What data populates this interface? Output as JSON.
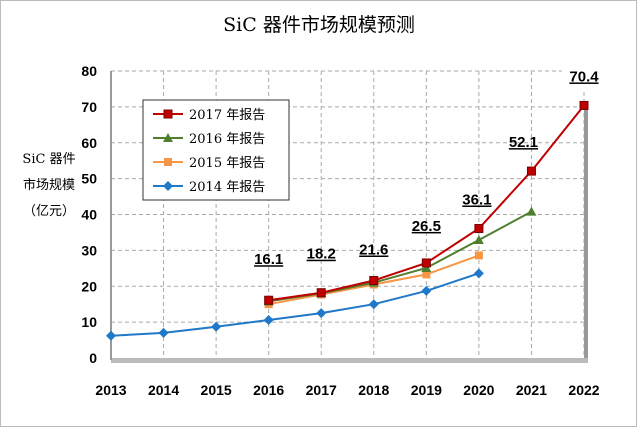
{
  "chart_data": {
    "type": "line",
    "title": "SiC 器件市场规模预测",
    "ylabel_lines": [
      "SiC 器件",
      "市场规模",
      "（亿元）"
    ],
    "xlabel": "",
    "x": [
      "2013",
      "2014",
      "2015",
      "2016",
      "2017",
      "2018",
      "2019",
      "2020",
      "2021",
      "2022"
    ],
    "ylim": [
      0,
      80
    ],
    "yticks": [
      0,
      10,
      20,
      30,
      40,
      50,
      60,
      70,
      80
    ],
    "grid": true,
    "legend_position": "top-left",
    "series": [
      {
        "name": "2017 年报告",
        "color": "#c00000",
        "marker": "square",
        "values": [
          null,
          null,
          null,
          16.1,
          18.2,
          21.6,
          26.5,
          36.1,
          52.1,
          70.4
        ],
        "data_labels": [
          "",
          "",
          "",
          "16.1",
          "18.2",
          "21.6",
          "26.5",
          "36.1",
          "52.1",
          "70.4"
        ]
      },
      {
        "name": "2016 年报告",
        "color": "#4f7f2e",
        "marker": "triangle",
        "values": [
          null,
          null,
          null,
          15.8,
          18.0,
          21.0,
          25.1,
          32.9,
          40.8,
          null
        ]
      },
      {
        "name": "2015 年报告",
        "color": "#f79646",
        "marker": "square",
        "values": [
          null,
          null,
          null,
          15.0,
          17.7,
          20.5,
          23.3,
          28.6,
          null,
          null
        ]
      },
      {
        "name": "2014 年报告",
        "color": "#1f78c8",
        "marker": "diamond",
        "values": [
          6.2,
          7.0,
          8.7,
          10.6,
          12.5,
          15.0,
          18.7,
          23.6,
          null,
          null
        ]
      }
    ]
  }
}
